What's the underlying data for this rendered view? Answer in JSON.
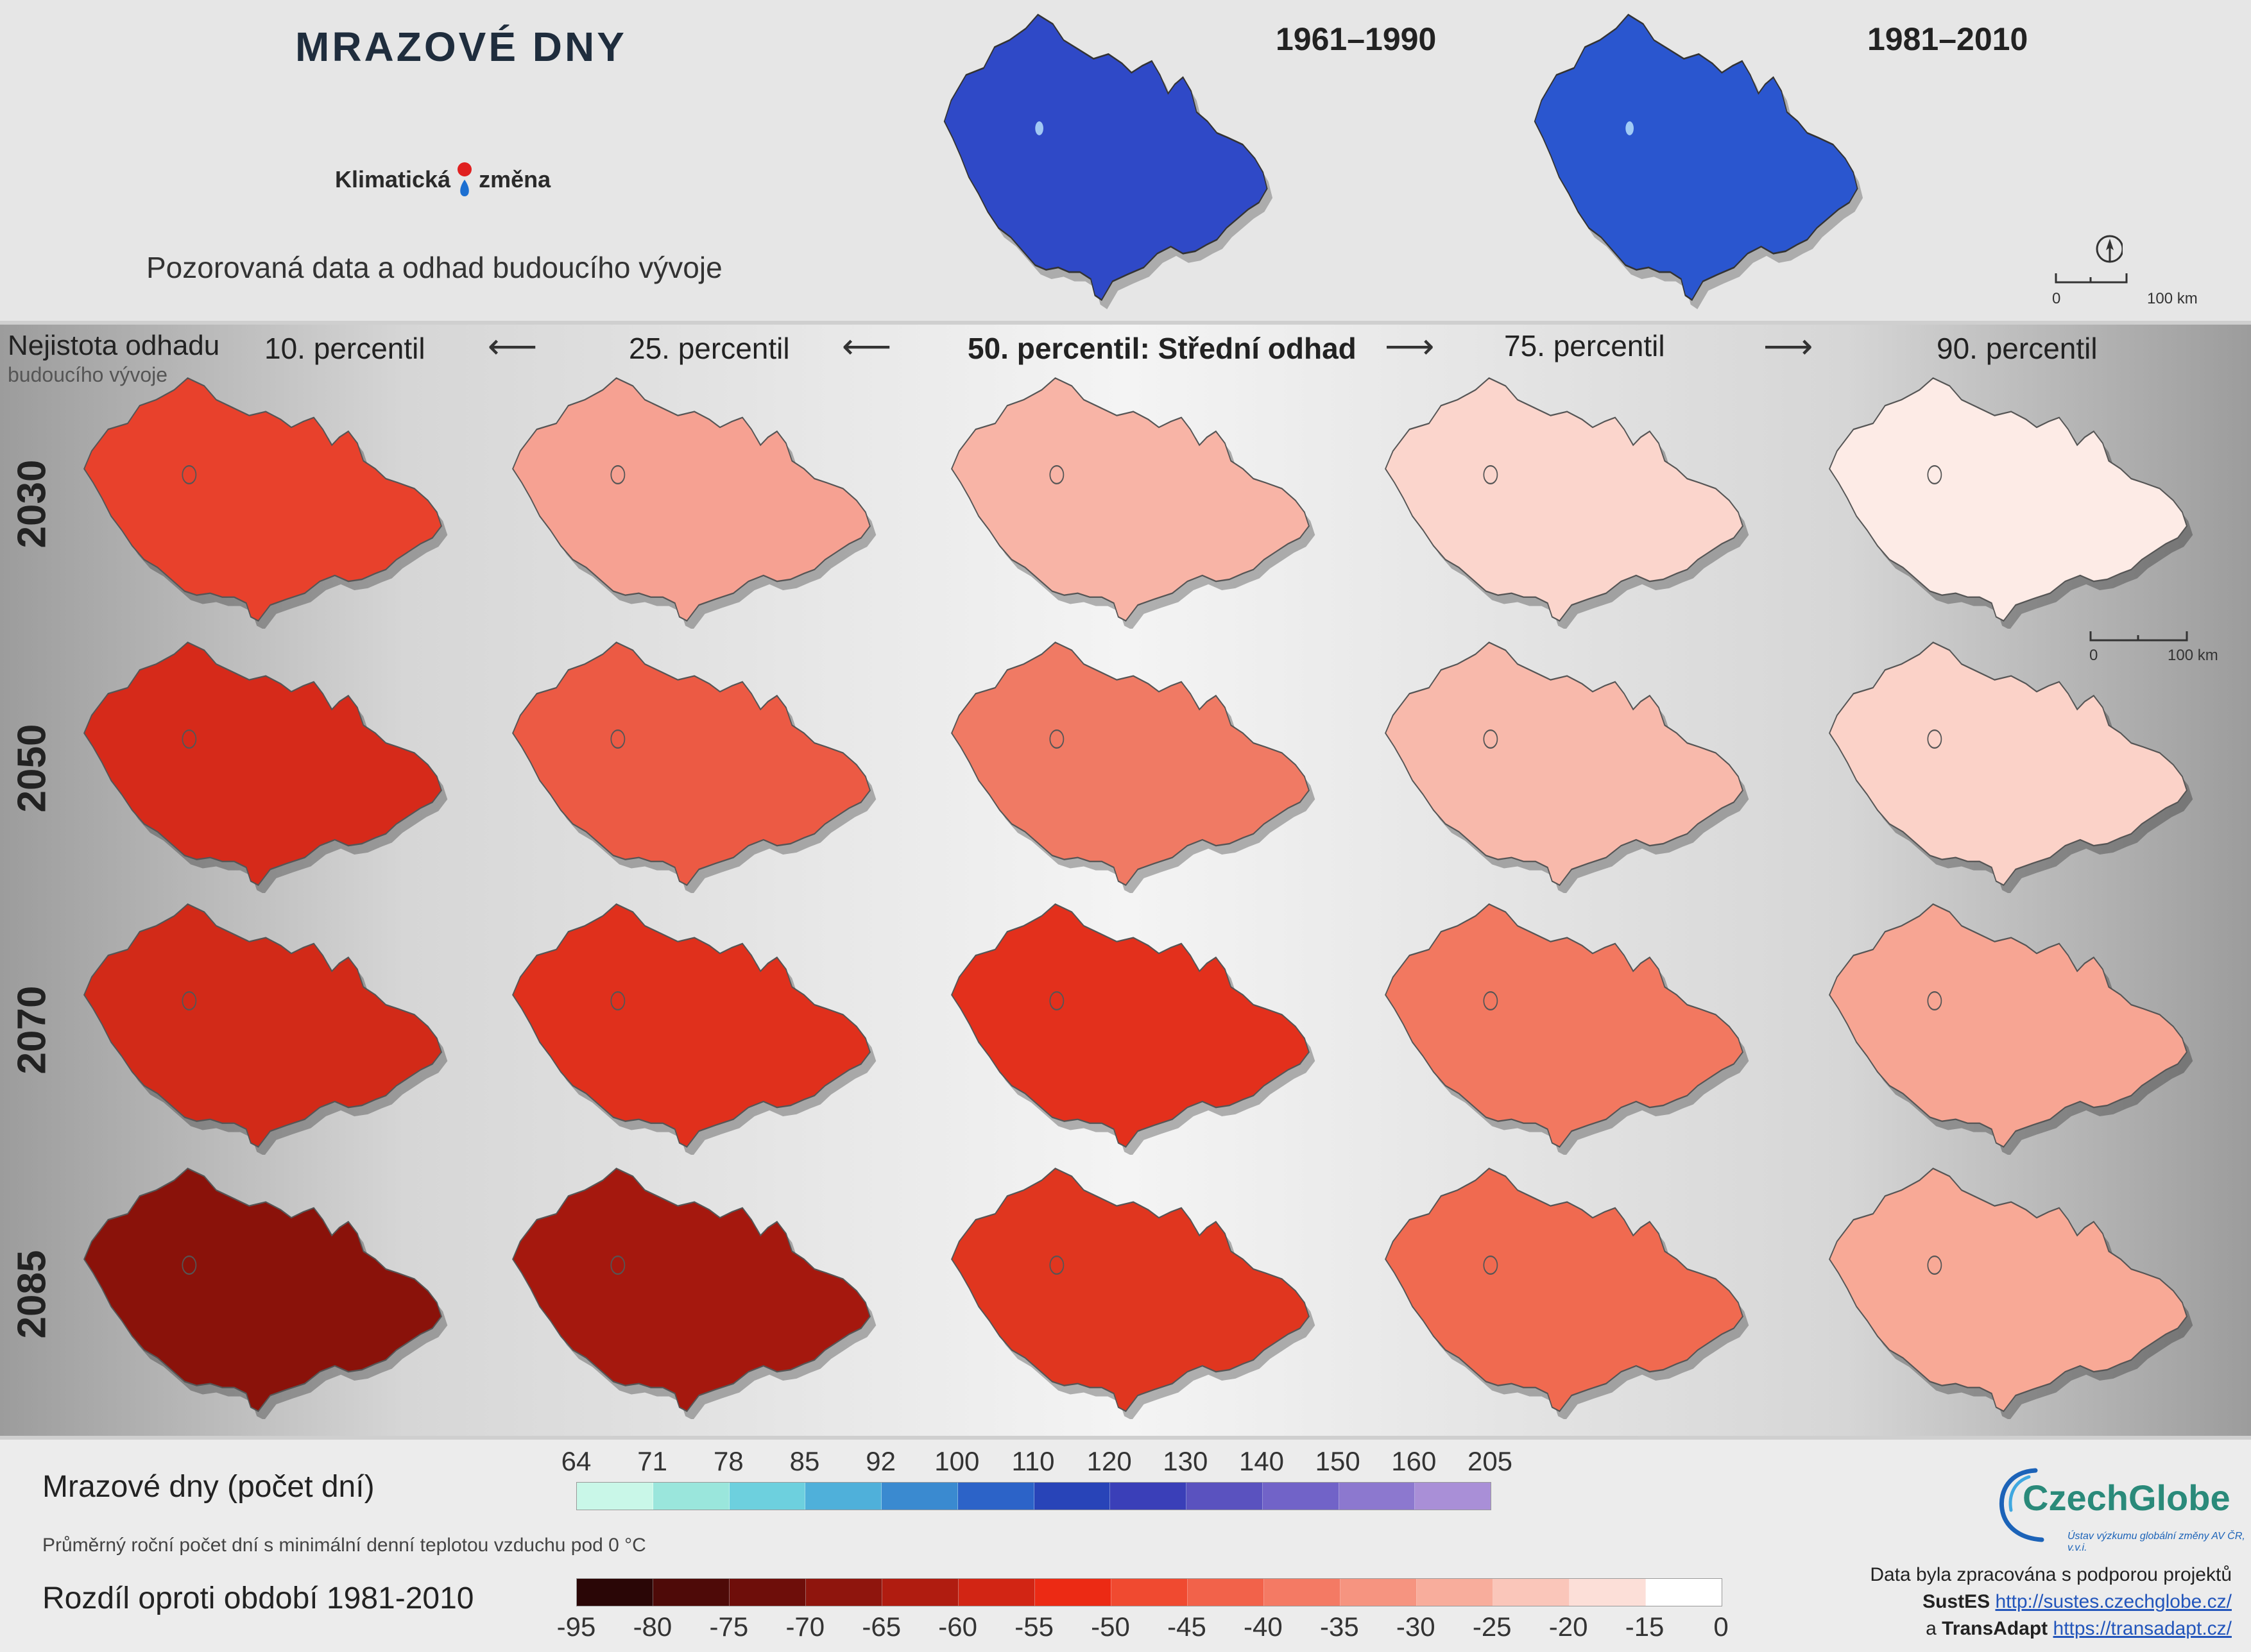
{
  "header": {
    "title": "MRAZOVÉ DNY",
    "brand_left": "Klimatická",
    "brand_right": "změna",
    "subtitle": "Pozorovaná data a odhad budoucího vývoje",
    "observed_periods": [
      "1961–1990",
      "1981–2010"
    ],
    "scale_bar": {
      "start": "0",
      "end": "100 km"
    }
  },
  "grid": {
    "uncertainty_label": "Nejistota odhadu",
    "uncertainty_sublabel": "budoucího vývoje",
    "columns": [
      "10. percentil",
      "25. percentil",
      "50. percentil: Střední odhad",
      "75. percentil",
      "90. percentil"
    ],
    "rows": [
      "2030",
      "2050",
      "2070",
      "2085"
    ],
    "scale_bar": {
      "start": "0",
      "end": "100 km"
    },
    "map_colors": [
      [
        "#e8412c",
        "#f6a192",
        "#f8b4a6",
        "#fbd5cc",
        "#fdebe6"
      ],
      [
        "#d62a1a",
        "#ec5a44",
        "#f07a64",
        "#f8b9ab",
        "#fbd2c8"
      ],
      [
        "#d22a18",
        "#e0301c",
        "#e3301c",
        "#f27860",
        "#f7a593"
      ],
      [
        "#8a120a",
        "#a5180e",
        "#e0361f",
        "#f06a50",
        "#f8a996"
      ]
    ]
  },
  "observed_map_colors": [
    "#2f49c7",
    "#2a56cf"
  ],
  "legend": {
    "frost_title": "Mrazové dny (počet dní)",
    "frost_note": "Průměrný roční počet dní s minimální denní teplotou vzduchu pod 0 °C",
    "frost_ticks": [
      "64",
      "71",
      "78",
      "85",
      "92",
      "100",
      "110",
      "120",
      "130",
      "140",
      "150",
      "160",
      "205"
    ],
    "frost_colors": [
      "#c9f7e8",
      "#9ae6dc",
      "#6dd0de",
      "#4fb0da",
      "#3a8ad0",
      "#2c63c8",
      "#2844b8",
      "#3a3fb8",
      "#5a52bf",
      "#7163c8",
      "#8c78cf",
      "#a98fd7"
    ],
    "diff_title": "Rozdíl oproti období 1981-2010",
    "diff_ticks": [
      "-95",
      "-80",
      "-75",
      "-70",
      "-65",
      "-60",
      "-55",
      "-50",
      "-45",
      "-40",
      "-35",
      "-30",
      "-25",
      "-20",
      "-15",
      "0"
    ],
    "diff_colors": [
      "#2a0606",
      "#4e0a08",
      "#6e0e0a",
      "#8f150d",
      "#b01c10",
      "#d22514",
      "#ec2a14",
      "#f04a30",
      "#f2624a",
      "#f47a64",
      "#f69480",
      "#f8ad9c",
      "#fac6ba",
      "#fcdfd8",
      "#ffffff"
    ]
  },
  "credits": {
    "org_name": "CzechGlobe",
    "org_subtitle": "Ústav výzkumu globální změny AV ČR, v.v.i.",
    "line1": "Data byla zpracována s podporou projektů",
    "project1": "SustES",
    "link1": "http://sustes.czechglobe.cz/",
    "and": "a",
    "project2": "TransAdapt",
    "link2": "https://transadapt.cz/"
  }
}
